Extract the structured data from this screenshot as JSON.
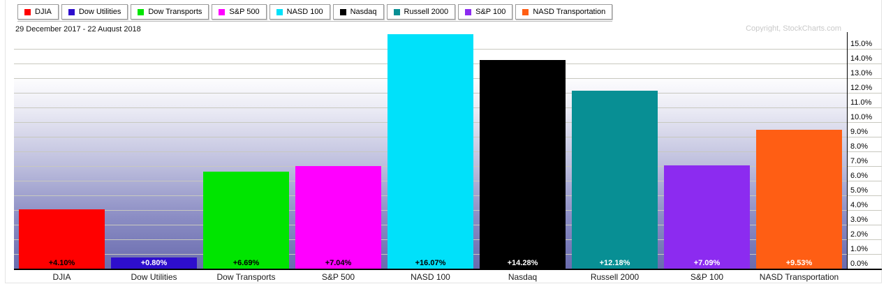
{
  "header": {
    "date_range": "29 December 2017 - 22 August 2018",
    "copyright": "Copyright, StockCharts.com"
  },
  "chart_data": {
    "type": "bar",
    "title": "",
    "xlabel": "",
    "ylabel": "",
    "categories": [
      "DJIA",
      "Dow Utilities",
      "Dow Transports",
      "S&P 500",
      "NASD 100",
      "Nasdaq",
      "Russell 2000",
      "S&P 100",
      "NASD Transportation"
    ],
    "series": [
      {
        "name": "DJIA",
        "value": 4.1,
        "label": "+4.10%",
        "color": "#ff0000",
        "label_color": "#000000"
      },
      {
        "name": "Dow Utilities",
        "value": 0.8,
        "label": "+0.80%",
        "color": "#2e0ecd",
        "label_color": "#ffffff"
      },
      {
        "name": "Dow Transports",
        "value": 6.69,
        "label": "+6.69%",
        "color": "#00e500",
        "label_color": "#000000"
      },
      {
        "name": "S&P 500",
        "value": 7.04,
        "label": "+7.04%",
        "color": "#ff00ff",
        "label_color": "#000000"
      },
      {
        "name": "NASD 100",
        "value": 16.07,
        "label": "+16.07%",
        "color": "#00e1fa",
        "label_color": "#000000"
      },
      {
        "name": "Nasdaq",
        "value": 14.28,
        "label": "+14.28%",
        "color": "#000000",
        "label_color": "#ffffff"
      },
      {
        "name": "Russell 2000",
        "value": 12.18,
        "label": "+12.18%",
        "color": "#088f94",
        "label_color": "#ffffff"
      },
      {
        "name": "S&P 100",
        "value": 7.09,
        "label": "+7.09%",
        "color": "#8c2bf0",
        "label_color": "#ffffff"
      },
      {
        "name": "NASD Transportation",
        "value": 9.53,
        "label": "+9.53%",
        "color": "#ff5e14",
        "label_color": "#ffffff"
      }
    ],
    "ylim": [
      0,
      16.2
    ],
    "y_ticks": [
      "0.0%",
      "1.0%",
      "2.0%",
      "3.0%",
      "4.0%",
      "5.0%",
      "6.0%",
      "7.0%",
      "8.0%",
      "9.0%",
      "10.0%",
      "11.0%",
      "12.0%",
      "13.0%",
      "14.0%",
      "15.0%"
    ],
    "grid": true,
    "legend_position": "top",
    "background": {
      "gradient_top": "#ffffff",
      "gradient_bottom": "#696bae",
      "gridline_color": "#c8c8bf"
    }
  }
}
